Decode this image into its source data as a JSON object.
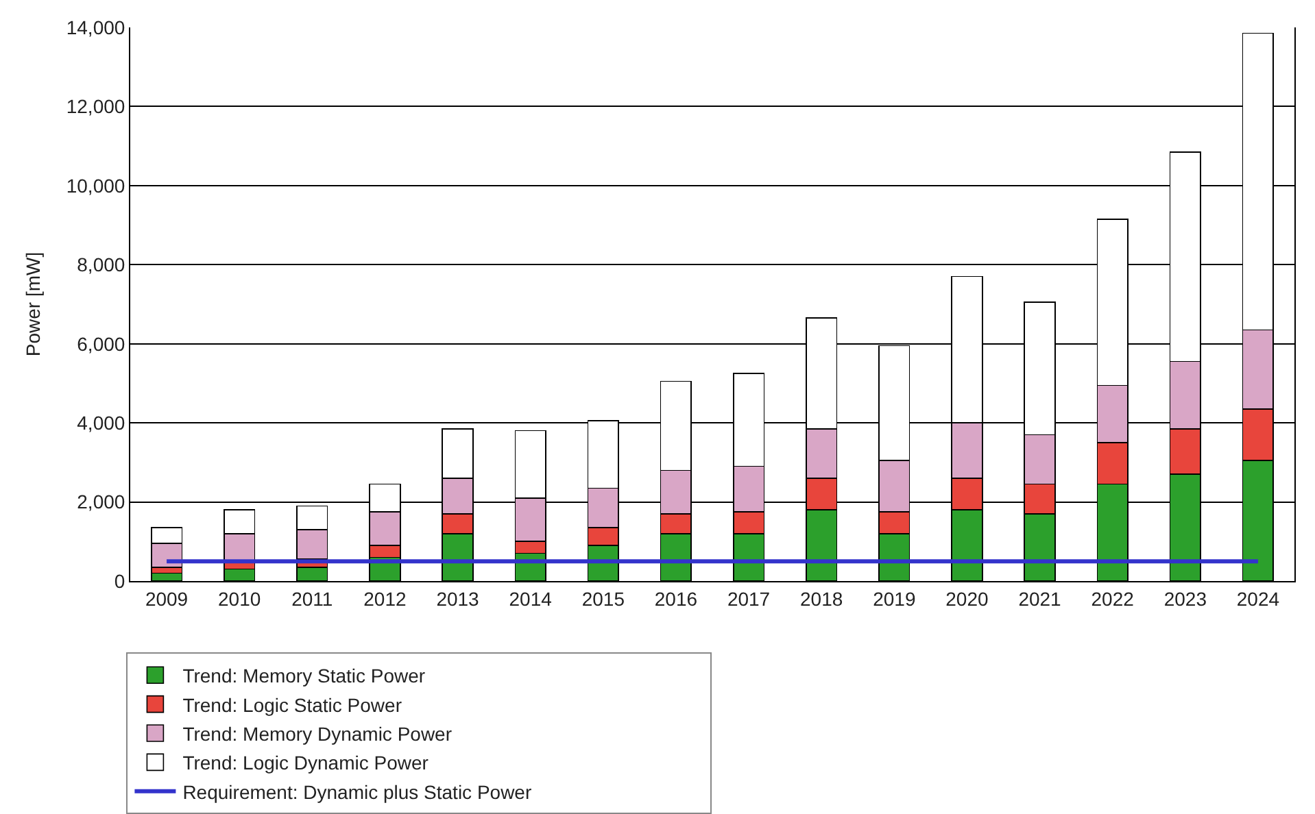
{
  "chart_data": {
    "type": "bar",
    "stacked": true,
    "ylabel": "Power [mW]",
    "categories": [
      "2009",
      "2010",
      "2011",
      "2012",
      "2013",
      "2014",
      "2015",
      "2016",
      "2017",
      "2018",
      "2019",
      "2020",
      "2021",
      "2022",
      "2023",
      "2024"
    ],
    "series": [
      {
        "name": "Trend: Memory Static Power",
        "color": "#2ca02c",
        "values": [
          200,
          300,
          350,
          600,
          1200,
          700,
          900,
          1200,
          1200,
          1800,
          1200,
          1800,
          1700,
          2450,
          2700,
          3050
        ]
      },
      {
        "name": "Trend: Logic Static Power",
        "color": "#e8453c",
        "values": [
          150,
          200,
          200,
          300,
          500,
          300,
          450,
          500,
          550,
          800,
          550,
          800,
          750,
          1050,
          1150,
          1300
        ]
      },
      {
        "name": "Trend: Memory Dynamic Power",
        "color": "#d9a6c6",
        "values": [
          600,
          700,
          750,
          850,
          900,
          1100,
          1000,
          1100,
          1150,
          1250,
          1300,
          1400,
          1250,
          1450,
          1700,
          2000
        ]
      },
      {
        "name": "Trend: Logic Dynamic Power",
        "color": "#ffffff",
        "values": [
          400,
          600,
          600,
          700,
          1250,
          1700,
          1700,
          2250,
          2350,
          2800,
          2900,
          3700,
          3350,
          4200,
          5300,
          7500
        ]
      },
      {
        "name": "Requirement: Dynamic plus Static Power",
        "type": "line",
        "color": "#3333cc",
        "line_style": "solid",
        "values": [
          500,
          500,
          500,
          500,
          500,
          500,
          500,
          500,
          500,
          500,
          500,
          500,
          500,
          500,
          500,
          500
        ]
      }
    ],
    "ylim": [
      0,
      14000
    ],
    "yticks": [
      {
        "value": 0,
        "label": "0"
      },
      {
        "value": 2000,
        "label": "2,000"
      },
      {
        "value": 4000,
        "label": "4,000"
      },
      {
        "value": 6000,
        "label": "6,000"
      },
      {
        "value": 8000,
        "label": "8,000"
      },
      {
        "value": 10000,
        "label": "10,000"
      },
      {
        "value": 12000,
        "label": "12,000"
      },
      {
        "value": 14000,
        "label": "14,000"
      }
    ],
    "grid": "y",
    "legend": "bottom",
    "marker": "none"
  }
}
